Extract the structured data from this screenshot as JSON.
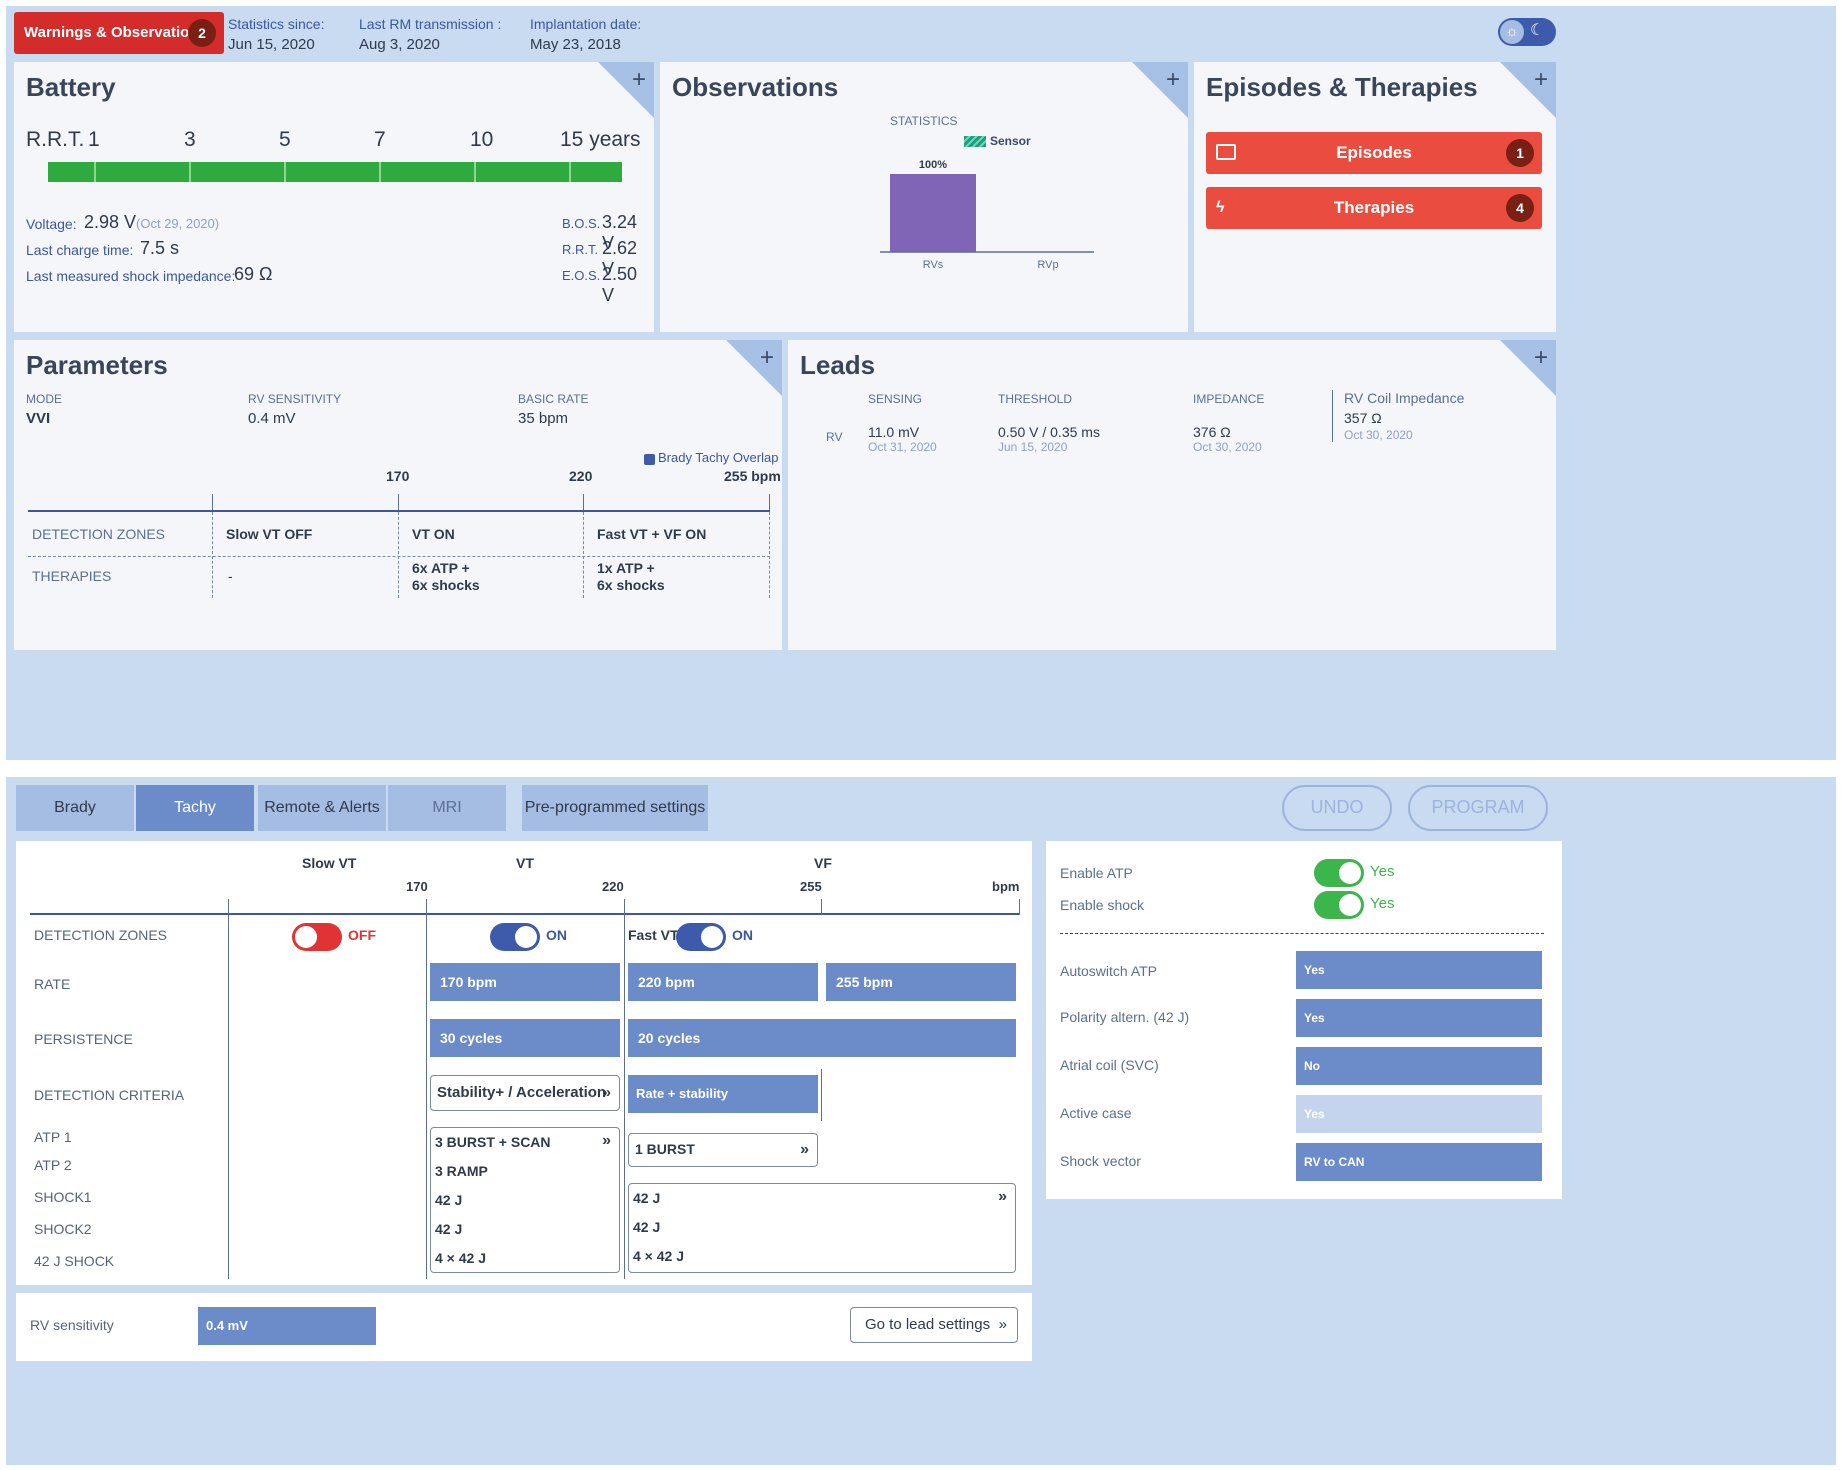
{
  "header": {
    "warnings_label": "Warnings & Observations",
    "warnings_count": "2",
    "stats_since_label": "Statistics since:",
    "stats_since_value": "Jun 15, 2020",
    "last_rm_label": "Last RM transmission :",
    "last_rm_value": "Aug 3, 2020",
    "implant_label": "Implantation date:",
    "implant_value": "May 23, 2018"
  },
  "battery": {
    "title": "Battery",
    "rrt_label": "R.R.T.",
    "scale": [
      "1",
      "3",
      "5",
      "7",
      "10",
      "15 years"
    ],
    "voltage_label": "Voltage:",
    "voltage_value": "2.98 V",
    "voltage_date": "(Oct 29, 2020)",
    "charge_label": "Last charge time:",
    "charge_value": "7.5 s",
    "impedance_label": "Last measured shock impedance:",
    "impedance_value": "69 Ω",
    "bos_label": "B.O.S.",
    "bos_value": "3.24 V",
    "rrt2_label": "R.R.T.",
    "rrt2_value": "2.62 V",
    "eos_label": "E.O.S.",
    "eos_value": "2.50 V",
    "level_fraction": 1.0
  },
  "observations": {
    "title": "Observations",
    "stats_label": "STATISTICS",
    "legend_label": "Sensor",
    "bar_value_label": "100%",
    "categories": [
      "RVs",
      "RVp"
    ],
    "values": [
      100,
      0
    ],
    "bar_color": "#8064b5"
  },
  "episodes": {
    "title": "Episodes & Therapies",
    "episodes_label": "Episodes",
    "episodes_count": "1",
    "therapies_label": "Therapies",
    "therapies_count": "4"
  },
  "parameters": {
    "title": "Parameters",
    "mode_label": "MODE",
    "mode_value": "VVI",
    "rvsens_label": "RV SENSITIVITY",
    "rvsens_value": "0.4 mV",
    "basic_label": "BASIC RATE",
    "basic_value": "35 bpm",
    "legend": "Brady Tachy Overlap",
    "scale": [
      "170",
      "220",
      "255 bpm"
    ],
    "det_label": "DETECTION ZONES",
    "ther_label": "THERAPIES",
    "zones": [
      "Slow VT OFF",
      "VT ON",
      "Fast VT + VF ON"
    ],
    "therapies": [
      "-",
      "6x ATP  +",
      "6x shocks",
      "1x ATP  +",
      "6x shocks"
    ]
  },
  "leads": {
    "title": "Leads",
    "sensing_label": "SENSING",
    "threshold_label": "THRESHOLD",
    "impedance_label": "IMPEDANCE",
    "coil_label": "RV Coil Impedance",
    "rv_label": "RV",
    "sensing_value": "11.0 mV",
    "sensing_date": "Oct 31, 2020",
    "threshold_value": "0.50 V / 0.35 ms",
    "threshold_date": "Jun 15, 2020",
    "impedance_value": "376 Ω",
    "impedance_date": "Oct 30, 2020",
    "coil_value": "357 Ω",
    "coil_date": "Oct 30, 2020"
  },
  "tabs": [
    "Brady",
    "Tachy",
    "Remote & Alerts",
    "MRI",
    "Pre-programmed settings"
  ],
  "actions": {
    "undo": "UNDO",
    "program": "PROGRAM"
  },
  "tachy": {
    "zone_headers": [
      "Slow VT",
      "VT",
      "VF"
    ],
    "scale": [
      "170",
      "220",
      "255",
      "bpm"
    ],
    "row_labels": [
      "DETECTION ZONES",
      "RATE",
      "PERSISTENCE",
      "DETECTION CRITERIA",
      "ATP 1",
      "ATP 2",
      "SHOCK1",
      "SHOCK2",
      "42 J SHOCK"
    ],
    "slow_vt_state": "OFF",
    "vt_state": "ON",
    "fast_vt_label": "Fast VT",
    "fast_vt_state": "ON",
    "vt_rate": "170 bpm",
    "fvt_rate": "220 bpm",
    "vf_rate": "255 bpm",
    "vt_persist": "30 cycles",
    "vf_persist": "20 cycles",
    "vt_criteria": "Stability+ / Acceleration",
    "vf_criteria": "Rate + stability",
    "vt_atp1": "3 BURST + SCAN",
    "vt_atp2": "3 RAMP",
    "vt_shock1": "42 J",
    "vt_shock2": "42 J",
    "vt_shock42": "4 × 42 J",
    "vf_atp1": "1 BURST",
    "vf_shock1": "42 J",
    "vf_shock2": "42 J",
    "vf_shock42": "4 × 42 J",
    "rv_sens_label": "RV sensitivity",
    "rv_sens_value": "0.4 mV",
    "lead_settings": "Go to lead settings"
  },
  "right": {
    "enable_atp_label": "Enable ATP",
    "enable_atp_value": "Yes",
    "enable_shock_label": "Enable shock",
    "enable_shock_value": "Yes",
    "autoswitch_label": "Autoswitch ATP",
    "autoswitch_value": "Yes",
    "polarity_label": "Polarity altern. (42 J)",
    "polarity_value": "Yes",
    "atrial_label": "Atrial coil (SVC)",
    "atrial_value": "No",
    "active_label": "Active case",
    "active_value": "Yes",
    "vector_label": "Shock vector",
    "vector_value": "RV to CAN"
  },
  "colors": {
    "accent": "#6b8bc9",
    "danger": "#ea4c3f",
    "green": "#3cb64a",
    "panel": "#c9dbf1"
  }
}
